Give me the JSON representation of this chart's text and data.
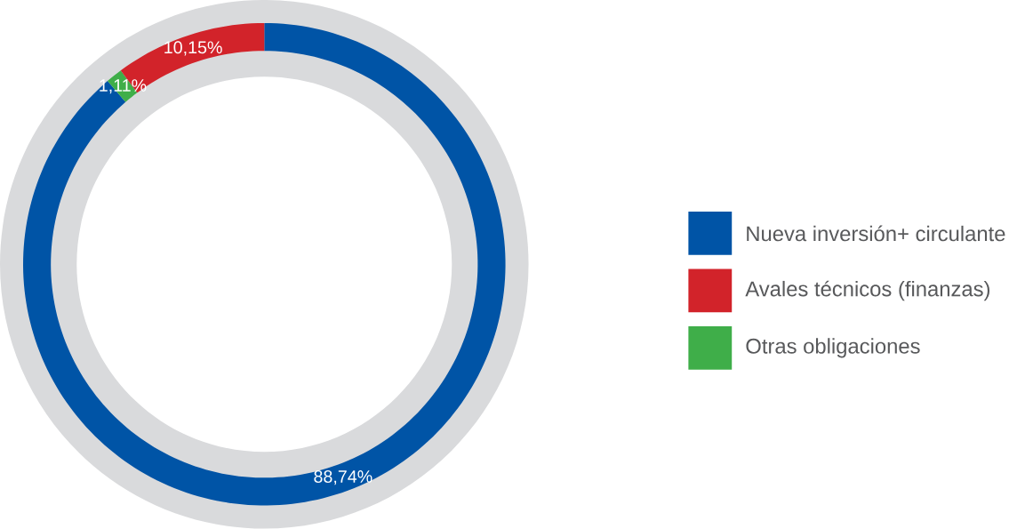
{
  "chart_data": {
    "type": "donut",
    "categories": [
      "Nueva inversión+ circulante",
      "Avales técnicos (finanzas)",
      "Otras obligaciones"
    ],
    "values": [
      88.74,
      10.15,
      1.11
    ],
    "colors": [
      "#0054a6",
      "#d2232a",
      "#3fae49"
    ],
    "value_labels": [
      "88,74%",
      "10,15%",
      "1,11%"
    ],
    "legend": "right"
  }
}
